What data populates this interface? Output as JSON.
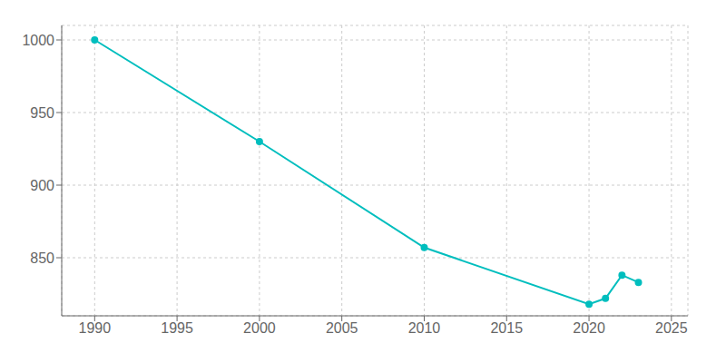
{
  "chart_data": {
    "type": "line",
    "x": [
      1990,
      2000,
      2010,
      2020,
      2021,
      2022,
      2023
    ],
    "values": [
      1000,
      930,
      857,
      818,
      822,
      838,
      833
    ],
    "color": "#00BEBE",
    "marker": "circle",
    "xlim": [
      1988,
      2026
    ],
    "xticks": [
      1990,
      1995,
      2000,
      2005,
      2010,
      2015,
      2020,
      2025
    ],
    "ylim": [
      810,
      1010
    ],
    "yticks": [
      850,
      900,
      950,
      1000
    ],
    "grid": true
  }
}
